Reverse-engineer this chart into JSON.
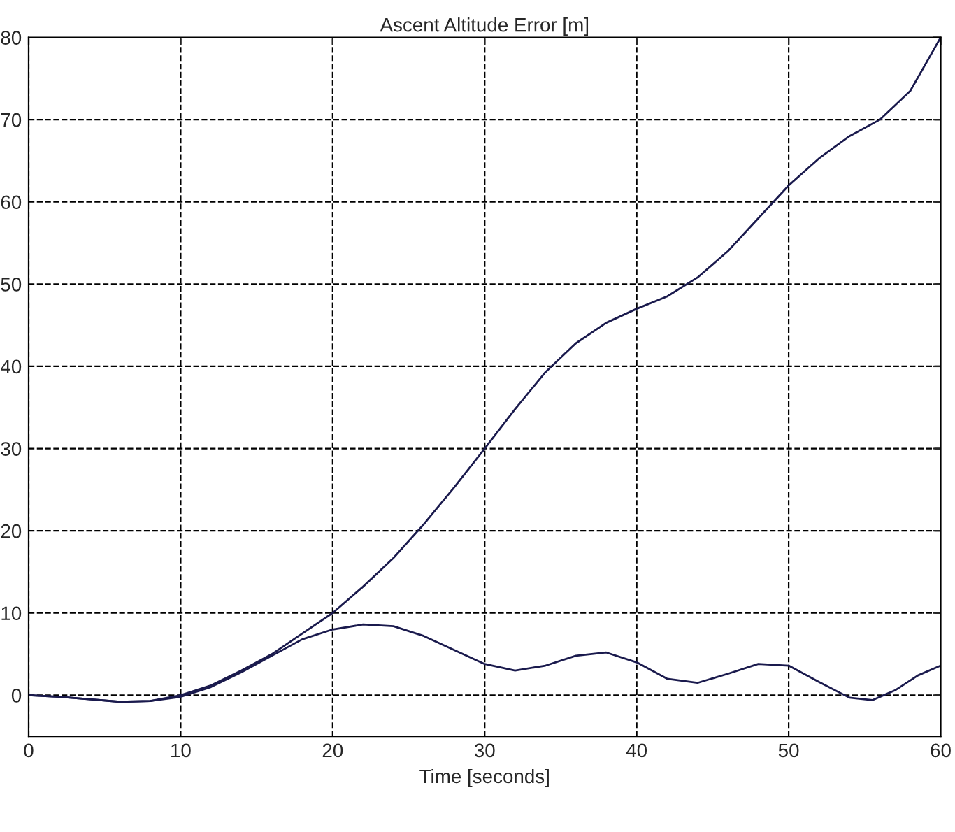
{
  "chart_data": {
    "type": "line",
    "title": "Ascent Altitude Error [m]",
    "xlabel": "Time [seconds]",
    "xlim": [
      0,
      60
    ],
    "ylim": [
      -5,
      80
    ],
    "xticks": [
      0,
      10,
      20,
      30,
      40,
      50,
      60
    ],
    "yticks": [
      0,
      10,
      20,
      30,
      40,
      50,
      60,
      70,
      80
    ],
    "grid": true,
    "line_style": "solid",
    "series": [
      {
        "color": "#1a1a4d",
        "x": [
          0,
          2,
          4,
          6,
          8,
          10,
          12,
          14,
          16,
          18,
          20,
          22,
          24,
          26,
          28,
          30,
          32,
          34,
          36,
          38,
          40,
          42,
          44,
          46,
          48,
          50,
          52,
          54,
          56,
          58,
          60
        ],
        "values": [
          0,
          -0.2,
          -0.5,
          -0.8,
          -0.7,
          0,
          1.2,
          3,
          5,
          7.5,
          10,
          13.2,
          16.7,
          20.8,
          25.3,
          30,
          34.8,
          39.3,
          42.8,
          45.3,
          47,
          48.5,
          50.8,
          54,
          58,
          62,
          65.3,
          68,
          70,
          73.5,
          80
        ]
      },
      {
        "color": "#1a1a4d",
        "x": [
          0,
          2,
          4,
          6,
          8,
          10,
          12,
          14,
          16,
          18,
          20,
          22,
          24,
          26,
          28,
          30,
          32,
          34,
          36,
          38,
          40,
          42,
          44,
          46,
          48,
          50,
          52,
          54,
          55.5,
          57,
          58.5,
          60
        ],
        "values": [
          0,
          -0.2,
          -0.5,
          -0.8,
          -0.7,
          -0.2,
          1,
          2.8,
          4.8,
          6.8,
          8,
          8.6,
          8.4,
          7.2,
          5.5,
          3.8,
          3,
          3.6,
          4.8,
          5.2,
          4,
          2,
          1.5,
          2.6,
          3.8,
          3.6,
          1.6,
          -0.3,
          -0.6,
          0.6,
          2.4,
          3.6
        ]
      }
    ]
  }
}
